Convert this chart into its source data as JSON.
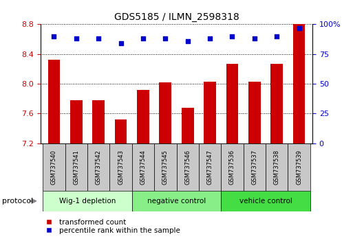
{
  "title": "GDS5185 / ILMN_2598318",
  "samples": [
    "GSM737540",
    "GSM737541",
    "GSM737542",
    "GSM737543",
    "GSM737544",
    "GSM737545",
    "GSM737546",
    "GSM737547",
    "GSM737536",
    "GSM737537",
    "GSM737538",
    "GSM737539"
  ],
  "bar_values": [
    8.32,
    7.78,
    7.78,
    7.52,
    7.92,
    8.02,
    7.68,
    8.03,
    8.27,
    8.03,
    8.27,
    8.8
  ],
  "dot_values": [
    90,
    88,
    88,
    84,
    88,
    88,
    86,
    88,
    90,
    88,
    90,
    97
  ],
  "ylim_left": [
    7.2,
    8.8
  ],
  "ylim_right": [
    0,
    100
  ],
  "yticks_left": [
    7.2,
    7.6,
    8.0,
    8.4,
    8.8
  ],
  "yticks_right": [
    0,
    25,
    50,
    75,
    100
  ],
  "bar_color": "#cc0000",
  "dot_color": "#0000cc",
  "bar_bottom": 7.2,
  "groups": [
    {
      "label": "Wig-1 depletion",
      "start": 0,
      "end": 4,
      "color": "#ccffcc"
    },
    {
      "label": "negative control",
      "start": 4,
      "end": 8,
      "color": "#88ee88"
    },
    {
      "label": "vehicle control",
      "start": 8,
      "end": 12,
      "color": "#44dd44"
    }
  ],
  "legend_bar_label": "transformed count",
  "legend_dot_label": "percentile rank within the sample",
  "protocol_label": "protocol",
  "tick_label_color_left": "#cc0000",
  "tick_label_color_right": "#0000cc",
  "bar_width": 0.55,
  "right_tick_labels": [
    "0",
    "25",
    "50",
    "75",
    "100%"
  ],
  "sample_box_color": "#c8c8c8",
  "fig_width": 5.13,
  "fig_height": 3.54,
  "dpi": 100
}
